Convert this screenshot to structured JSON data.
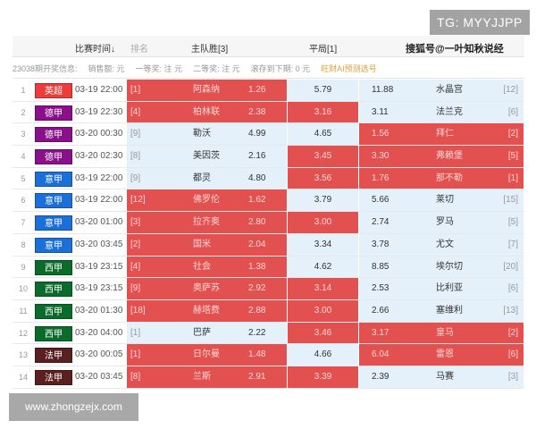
{
  "watermarks": {
    "tg": "TG: MYYJJPP",
    "site": "www.zhongzejx.com",
    "sohu": "搜狐号@一叶知秋说经"
  },
  "header": {
    "time": "比赛时间↓",
    "rank": "排名",
    "home": "主队胜[3]",
    "draw": "平局[1]"
  },
  "info": {
    "period": "23038期开奖信息:",
    "sales": "销售额: 元",
    "first": "一等奖: 注 元",
    "second": "二等奖: 注 元",
    "rollover": "滚存到下期: 0 元",
    "ai": "旺财AI预测选号"
  },
  "colors": {
    "highlight": "#e25050",
    "normal": "#e4f0fa",
    "英超": "#ee3b3b",
    "德甲": "#8a0f8a",
    "意甲": "#1a6fd8",
    "西甲": "#0b6b2b",
    "法甲": "#5a1f1f"
  },
  "matches": [
    {
      "no": "1",
      "league": "英超",
      "time": "03-19 22:00",
      "home_rank": "[1]",
      "home": "阿森纳",
      "home_odds": "1.26",
      "draw_odds": "5.79",
      "away_odds": "11.88",
      "away": "水晶宫",
      "away_rank": "[12]",
      "hl": [
        1,
        0,
        0
      ]
    },
    {
      "no": "2",
      "league": "德甲",
      "time": "03-19 22:30",
      "home_rank": "[4]",
      "home": "柏林联",
      "home_odds": "2.38",
      "draw_odds": "3.16",
      "away_odds": "3.11",
      "away": "法兰克",
      "away_rank": "[6]",
      "hl": [
        1,
        1,
        0
      ]
    },
    {
      "no": "3",
      "league": "德甲",
      "time": "03-20 00:30",
      "home_rank": "[9]",
      "home": "勒沃",
      "home_odds": "4.99",
      "draw_odds": "4.65",
      "away_odds": "1.56",
      "away": "拜仁",
      "away_rank": "[2]",
      "hl": [
        0,
        0,
        1
      ]
    },
    {
      "no": "4",
      "league": "德甲",
      "time": "03-20 02:30",
      "home_rank": "[8]",
      "home": "美因茨",
      "home_odds": "2.16",
      "draw_odds": "3.45",
      "away_odds": "3.30",
      "away": "弗赖堡",
      "away_rank": "[5]",
      "hl": [
        0,
        1,
        1
      ]
    },
    {
      "no": "5",
      "league": "意甲",
      "time": "03-19 22:00",
      "home_rank": "[9]",
      "home": "都灵",
      "home_odds": "4.80",
      "draw_odds": "3.56",
      "away_odds": "1.76",
      "away": "那不勒",
      "away_rank": "[1]",
      "hl": [
        0,
        1,
        1
      ]
    },
    {
      "no": "6",
      "league": "意甲",
      "time": "03-19 22:00",
      "home_rank": "[12]",
      "home": "佛罗伦",
      "home_odds": "1.62",
      "draw_odds": "3.79",
      "away_odds": "5.66",
      "away": "莱切",
      "away_rank": "[15]",
      "hl": [
        1,
        0,
        0
      ]
    },
    {
      "no": "7",
      "league": "意甲",
      "time": "03-20 01:00",
      "home_rank": "[3]",
      "home": "拉齐奥",
      "home_odds": "2.80",
      "draw_odds": "3.00",
      "away_odds": "2.74",
      "away": "罗马",
      "away_rank": "[5]",
      "hl": [
        1,
        1,
        0
      ]
    },
    {
      "no": "8",
      "league": "意甲",
      "time": "03-20 03:45",
      "home_rank": "[2]",
      "home": "国米",
      "home_odds": "2.04",
      "draw_odds": "3.34",
      "away_odds": "3.78",
      "away": "尤文",
      "away_rank": "[7]",
      "hl": [
        1,
        0,
        0
      ]
    },
    {
      "no": "9",
      "league": "西甲",
      "time": "03-19 23:15",
      "home_rank": "[4]",
      "home": "社会",
      "home_odds": "1.38",
      "draw_odds": "4.62",
      "away_odds": "8.85",
      "away": "埃尔切",
      "away_rank": "[20]",
      "hl": [
        1,
        0,
        0
      ]
    },
    {
      "no": "10",
      "league": "西甲",
      "time": "03-19 23:15",
      "home_rank": "[9]",
      "home": "奥萨苏",
      "home_odds": "2.92",
      "draw_odds": "3.14",
      "away_odds": "2.53",
      "away": "比利亚",
      "away_rank": "[6]",
      "hl": [
        1,
        1,
        0
      ]
    },
    {
      "no": "11",
      "league": "西甲",
      "time": "03-20 01:30",
      "home_rank": "[18]",
      "home": "赫塔费",
      "home_odds": "2.88",
      "draw_odds": "3.00",
      "away_odds": "2.66",
      "away": "塞维利",
      "away_rank": "[13]",
      "hl": [
        1,
        1,
        0
      ]
    },
    {
      "no": "12",
      "league": "西甲",
      "time": "03-20 04:00",
      "home_rank": "[1]",
      "home": "巴萨",
      "home_odds": "2.22",
      "draw_odds": "3.46",
      "away_odds": "3.17",
      "away": "皇马",
      "away_rank": "[2]",
      "hl": [
        0,
        1,
        1
      ]
    },
    {
      "no": "13",
      "league": "法甲",
      "time": "03-20 00:05",
      "home_rank": "[1]",
      "home": "日尔曼",
      "home_odds": "1.48",
      "draw_odds": "4.66",
      "away_odds": "6.04",
      "away": "雷恩",
      "away_rank": "[6]",
      "hl": [
        1,
        0,
        1
      ]
    },
    {
      "no": "14",
      "league": "法甲",
      "time": "03-20 03:45",
      "home_rank": "[8]",
      "home": "兰斯",
      "home_odds": "2.91",
      "draw_odds": "3.39",
      "away_odds": "2.39",
      "away": "马赛",
      "away_rank": "[3]",
      "hl": [
        1,
        1,
        0
      ]
    }
  ]
}
